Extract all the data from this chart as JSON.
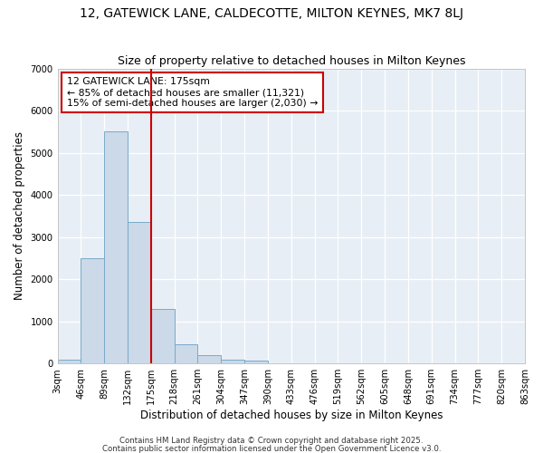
{
  "title": "12, GATEWICK LANE, CALDECOTTE, MILTON KEYNES, MK7 8LJ",
  "subtitle": "Size of property relative to detached houses in Milton Keynes",
  "xlabel": "Distribution of detached houses by size in Milton Keynes",
  "ylabel": "Number of detached properties",
  "bar_values": [
    100,
    2500,
    5500,
    3350,
    1300,
    460,
    190,
    80,
    60,
    0,
    0,
    0,
    0,
    0,
    0,
    0,
    0,
    0,
    0,
    0
  ],
  "categories": [
    "3sqm",
    "46sqm",
    "89sqm",
    "132sqm",
    "175sqm",
    "218sqm",
    "261sqm",
    "304sqm",
    "347sqm",
    "390sqm",
    "433sqm",
    "476sqm",
    "519sqm",
    "562sqm",
    "605sqm",
    "648sqm",
    "691sqm",
    "734sqm",
    "777sqm",
    "820sqm",
    "863sqm"
  ],
  "bar_color": "#ccd9e8",
  "bar_edgecolor": "#7aaac8",
  "vline_color": "#cc0000",
  "vline_bin": 4,
  "annotation_line0": "12 GATEWICK LANE: 175sqm",
  "annotation_line1": "← 85% of detached houses are smaller (11,321)",
  "annotation_line2": "15% of semi-detached houses are larger (2,030) →",
  "annotation_box_color": "#cc0000",
  "ylim": [
    0,
    7000
  ],
  "yticks": [
    0,
    1000,
    2000,
    3000,
    4000,
    5000,
    6000,
    7000
  ],
  "bg_color": "#e8eef5",
  "grid_color": "#ffffff",
  "footer1": "Contains HM Land Registry data © Crown copyright and database right 2025.",
  "footer2": "Contains public sector information licensed under the Open Government Licence v3.0."
}
